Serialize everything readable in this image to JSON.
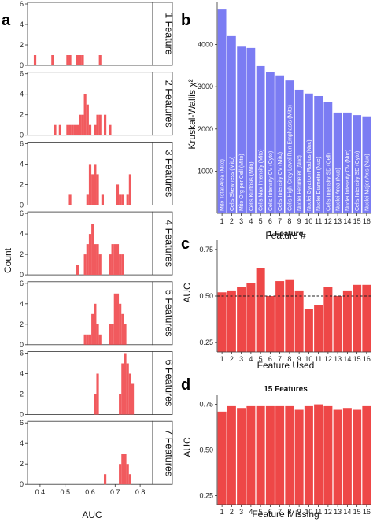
{
  "figure": {
    "letters": [
      "a",
      "b",
      "c",
      "d"
    ],
    "colors": {
      "histogram": "#f15a5e",
      "kruskal": "#7b7cf3",
      "auc": "#ee4747",
      "panel_bg": "#ffffff",
      "frame": "#333333",
      "dashed": "#222222"
    }
  },
  "chart_data": [
    {
      "panel": "a",
      "type": "bar",
      "subtype": "faceted-histogram",
      "xlabel": "AUC",
      "ylabel": "Count",
      "xlim": [
        0.35,
        0.85
      ],
      "ylim": [
        0,
        6
      ],
      "x_ticks": [
        "0.4",
        "0.5",
        "0.6",
        "0.7",
        "0.8"
      ],
      "y_ticks": [
        "0",
        "2",
        "4",
        "6"
      ],
      "bin_width": 0.01,
      "facets": [
        {
          "label": "1 Feature",
          "bins": [
            {
              "x": 0.38,
              "count": 1
            },
            {
              "x": 0.45,
              "count": 1
            },
            {
              "x": 0.51,
              "count": 1
            },
            {
              "x": 0.52,
              "count": 1
            },
            {
              "x": 0.55,
              "count": 1
            },
            {
              "x": 0.56,
              "count": 1
            },
            {
              "x": 0.57,
              "count": 1
            },
            {
              "x": 0.64,
              "count": 1
            }
          ]
        },
        {
          "label": "2 Features",
          "bins": [
            {
              "x": 0.46,
              "count": 1
            },
            {
              "x": 0.48,
              "count": 1
            },
            {
              "x": 0.51,
              "count": 1
            },
            {
              "x": 0.52,
              "count": 1
            },
            {
              "x": 0.53,
              "count": 1
            },
            {
              "x": 0.54,
              "count": 1
            },
            {
              "x": 0.55,
              "count": 1
            },
            {
              "x": 0.56,
              "count": 2
            },
            {
              "x": 0.57,
              "count": 2
            },
            {
              "x": 0.58,
              "count": 4
            },
            {
              "x": 0.59,
              "count": 3
            },
            {
              "x": 0.6,
              "count": 1
            },
            {
              "x": 0.62,
              "count": 1
            },
            {
              "x": 0.63,
              "count": 2
            },
            {
              "x": 0.64,
              "count": 2
            },
            {
              "x": 0.66,
              "count": 2
            },
            {
              "x": 0.68,
              "count": 1
            }
          ]
        },
        {
          "label": "3 Features",
          "bins": [
            {
              "x": 0.52,
              "count": 1
            },
            {
              "x": 0.59,
              "count": 1
            },
            {
              "x": 0.6,
              "count": 4
            },
            {
              "x": 0.61,
              "count": 3
            },
            {
              "x": 0.62,
              "count": 4
            },
            {
              "x": 0.63,
              "count": 3
            },
            {
              "x": 0.65,
              "count": 1
            },
            {
              "x": 0.71,
              "count": 2
            },
            {
              "x": 0.72,
              "count": 1
            },
            {
              "x": 0.73,
              "count": 1
            },
            {
              "x": 0.75,
              "count": 1
            },
            {
              "x": 0.76,
              "count": 3
            }
          ]
        },
        {
          "label": "4 Features",
          "bins": [
            {
              "x": 0.55,
              "count": 1
            },
            {
              "x": 0.58,
              "count": 2
            },
            {
              "x": 0.59,
              "count": 3
            },
            {
              "x": 0.6,
              "count": 4
            },
            {
              "x": 0.61,
              "count": 5
            },
            {
              "x": 0.62,
              "count": 3
            },
            {
              "x": 0.63,
              "count": 3
            },
            {
              "x": 0.64,
              "count": 2
            },
            {
              "x": 0.68,
              "count": 2
            },
            {
              "x": 0.69,
              "count": 3
            },
            {
              "x": 0.7,
              "count": 3
            },
            {
              "x": 0.71,
              "count": 3
            },
            {
              "x": 0.72,
              "count": 2
            },
            {
              "x": 0.73,
              "count": 2
            }
          ]
        },
        {
          "label": "5 Features",
          "bins": [
            {
              "x": 0.58,
              "count": 1
            },
            {
              "x": 0.59,
              "count": 1
            },
            {
              "x": 0.6,
              "count": 1
            },
            {
              "x": 0.61,
              "count": 3
            },
            {
              "x": 0.62,
              "count": 4
            },
            {
              "x": 0.63,
              "count": 2
            },
            {
              "x": 0.64,
              "count": 1
            },
            {
              "x": 0.68,
              "count": 2
            },
            {
              "x": 0.69,
              "count": 2
            },
            {
              "x": 0.7,
              "count": 5
            },
            {
              "x": 0.71,
              "count": 5
            },
            {
              "x": 0.72,
              "count": 4
            },
            {
              "x": 0.73,
              "count": 3
            },
            {
              "x": 0.74,
              "count": 2
            }
          ]
        },
        {
          "label": "6 Features",
          "bins": [
            {
              "x": 0.62,
              "count": 2
            },
            {
              "x": 0.63,
              "count": 4
            },
            {
              "x": 0.72,
              "count": 2
            },
            {
              "x": 0.73,
              "count": 5
            },
            {
              "x": 0.74,
              "count": 6
            },
            {
              "x": 0.75,
              "count": 5
            },
            {
              "x": 0.76,
              "count": 4
            },
            {
              "x": 0.77,
              "count": 3
            }
          ]
        },
        {
          "label": "7 Features",
          "bins": [
            {
              "x": 0.66,
              "count": 1
            },
            {
              "x": 0.72,
              "count": 2
            },
            {
              "x": 0.73,
              "count": 3
            },
            {
              "x": 0.74,
              "count": 3
            },
            {
              "x": 0.75,
              "count": 2
            },
            {
              "x": 0.76,
              "count": 1
            }
          ]
        }
      ]
    },
    {
      "panel": "b",
      "type": "bar",
      "xlabel": "Feature #",
      "ylabel": "Kruskal-Wallis χ²",
      "ylim": [
        0,
        5000
      ],
      "y_ticks": [
        1000,
        2000,
        3000,
        4000
      ],
      "categories": [
        "1",
        "2",
        "3",
        "4",
        "5",
        "6",
        "7",
        "8",
        "9",
        "10",
        "11",
        "12",
        "13",
        "14",
        "15",
        "16"
      ],
      "values": [
        4830,
        4200,
        3950,
        3920,
        3490,
        3340,
        3270,
        3150,
        2930,
        2840,
        2780,
        2640,
        2390,
        2390,
        2330,
        2300
      ],
      "bar_labels": [
        "Mito Total Area (Mito)",
        "Cells Skewness (Mito)",
        "Mito Org per Cell (Mito)",
        "Cells Kurtosis (Mito)",
        "Cells Max Intensity (Mito)",
        "Cells Intensity CV (Cyto)",
        "Cells Intensity CV (Mito)",
        "Cells High Grey Level Run Emphasis (Mito)",
        "Nuclei Perimeter (Nuc)",
        "Nuclei Gyration Radius (Nuc)",
        "Nuclei Diameter (Nuc)",
        "Cells Intensity SD (Cell)",
        "Nuclei Area (Nuc)",
        "Nuclei Intensity CV (Nuc)",
        "Cells Intensity SD (Cyto)",
        "Nuclei Major Axis (Nuc)"
      ]
    },
    {
      "panel": "c",
      "type": "bar",
      "title": "1 Feature",
      "xlabel": "Feature Used",
      "ylabel": "AUC",
      "ylim": [
        0.2,
        0.8
      ],
      "y_ticks": [
        "0.25",
        "0.50",
        "0.75"
      ],
      "reference_line": 0.5,
      "categories": [
        "1",
        "2",
        "3",
        "4",
        "5",
        "6",
        "7",
        "8",
        "9",
        "10",
        "11",
        "12",
        "13",
        "14",
        "15",
        "16"
      ],
      "values": [
        0.52,
        0.53,
        0.55,
        0.57,
        0.65,
        0.5,
        0.58,
        0.59,
        0.53,
        0.43,
        0.45,
        0.55,
        0.5,
        0.53,
        0.56,
        0.56
      ]
    },
    {
      "panel": "d",
      "type": "bar",
      "title": "15 Features",
      "xlabel": "Feature Missing",
      "ylabel": "AUC",
      "ylim": [
        0.2,
        0.8
      ],
      "y_ticks": [
        "0.25",
        "0.50",
        "0.75"
      ],
      "reference_line": 0.5,
      "categories": [
        "1",
        "2",
        "3",
        "4",
        "5",
        "6",
        "7",
        "8",
        "9",
        "10",
        "11",
        "12",
        "13",
        "14",
        "15",
        "16"
      ],
      "values": [
        0.71,
        0.74,
        0.73,
        0.74,
        0.74,
        0.74,
        0.74,
        0.74,
        0.72,
        0.74,
        0.75,
        0.74,
        0.72,
        0.73,
        0.72,
        0.74
      ]
    }
  ]
}
